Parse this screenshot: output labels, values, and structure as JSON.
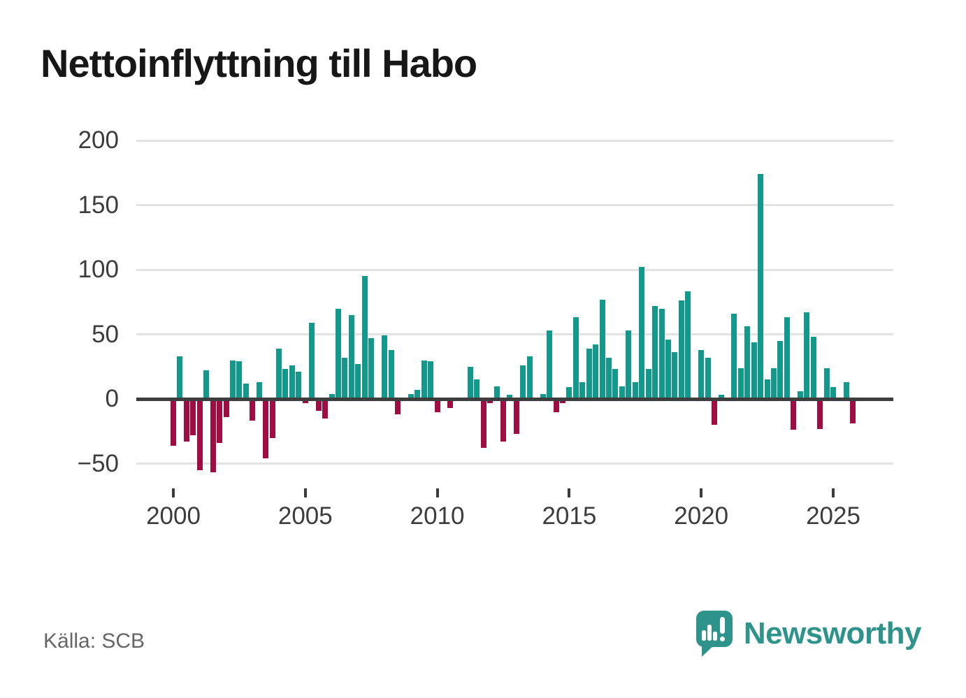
{
  "title": "Nettoinflyttning till Habo",
  "source": "Källa: SCB",
  "branding": {
    "logo_text": "Newsworthy",
    "logo_icon": "newsworthy-speech-bubble-bar-chart-icon"
  },
  "colors": {
    "positive": "#12998c",
    "negative": "#a00d42",
    "grid": "#e3e3e3",
    "zero_line": "#3d3d3d",
    "axis_text": "#3c3c3c",
    "title_text": "#171717",
    "source_text": "#666666",
    "brand_teal": "#2e938b"
  },
  "chart_data": {
    "type": "bar",
    "title": "Nettoinflyttning till Habo",
    "x_unit": "quarter",
    "start_year": 2000,
    "quarters_start": "2000Q1",
    "quarters_end": "2025Q4",
    "xlabel": "",
    "ylabel": "",
    "ylim": [
      -75,
      215
    ],
    "grid": true,
    "legend": false,
    "x_tick_labels": [
      "2000",
      "2005",
      "2010",
      "2015",
      "2020",
      "2025"
    ],
    "y_ticks": [
      {
        "value": 200,
        "label": "200"
      },
      {
        "value": 150,
        "label": "150"
      },
      {
        "value": 100,
        "label": "100"
      },
      {
        "value": 50,
        "label": "50"
      },
      {
        "value": 0,
        "label": "0"
      },
      {
        "value": -50,
        "label": "−50"
      }
    ],
    "series": [
      {
        "name": "Nettoinflyttning till Habo per kvartal",
        "values": [
          -36,
          33,
          -33,
          -28,
          -55,
          22,
          -57,
          -34,
          -14,
          30,
          29,
          12,
          -17,
          13,
          -46,
          -30,
          39,
          23,
          26,
          21,
          -3,
          59,
          -9,
          -15,
          4,
          70,
          32,
          65,
          27,
          95,
          47,
          0,
          49,
          38,
          -12,
          0,
          4,
          7,
          30,
          29,
          -10,
          0,
          -7,
          0,
          0,
          25,
          15,
          -38,
          -3,
          10,
          -33,
          3,
          -27,
          26,
          33,
          0,
          4,
          53,
          -10,
          -3,
          9,
          63,
          13,
          39,
          42,
          77,
          32,
          23,
          10,
          53,
          13,
          102,
          23,
          72,
          70,
          46,
          36,
          76,
          83,
          0,
          38,
          32,
          -20,
          3,
          0,
          66,
          24,
          56,
          44,
          174,
          15,
          24,
          45,
          63,
          -24,
          6,
          67,
          48,
          -23,
          24,
          9,
          0,
          13,
          -19
        ]
      }
    ]
  }
}
